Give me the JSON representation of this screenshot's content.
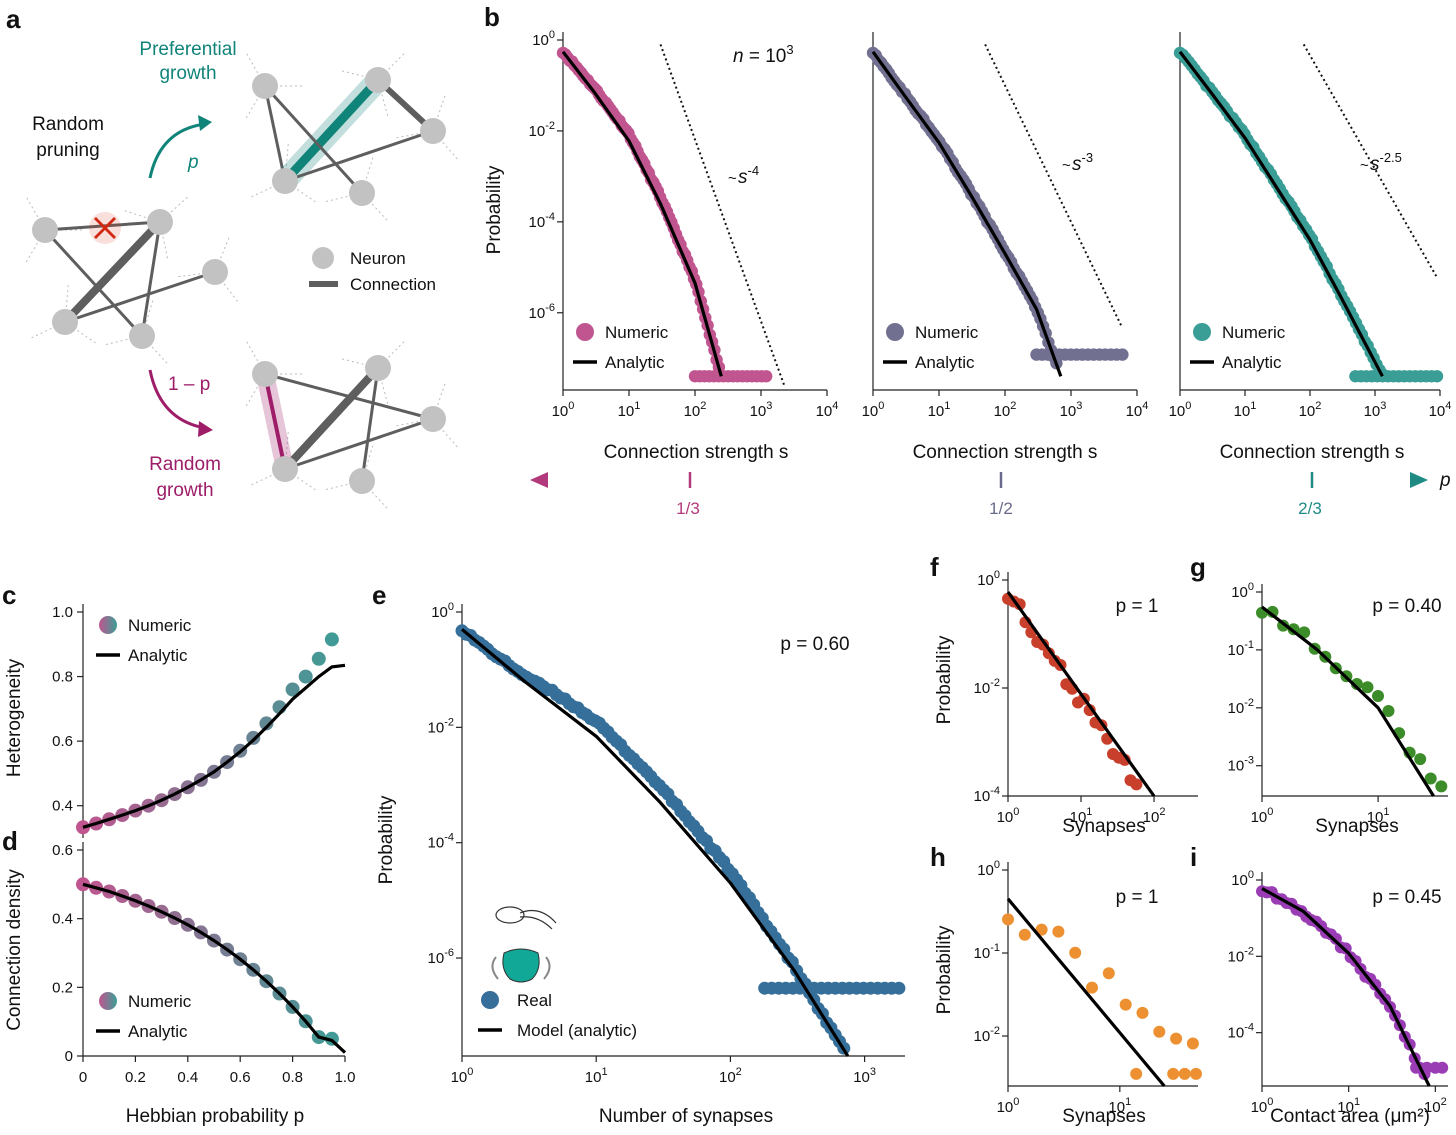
{
  "panel_letters": [
    "a",
    "b",
    "c",
    "d",
    "e",
    "f",
    "g",
    "h",
    "i"
  ],
  "panel_a": {
    "pruning": [
      "Random",
      "pruning"
    ],
    "pref": [
      "Preferential",
      "growth"
    ],
    "rand": [
      "Random",
      "growth"
    ],
    "p": "p",
    "one_minus_p": "1 – p",
    "legend_neuron": "Neuron",
    "legend_connection": "Connection",
    "colors": {
      "pref": "#11847a",
      "rand": "#9e1d68",
      "prune": "#d1260f",
      "node": "#c2c2c2",
      "edge": "#5e5e5e"
    }
  },
  "p_axis": {
    "label": "p",
    "ticks": [
      "1/3",
      "1/2",
      "2/3"
    ],
    "colors": [
      "#b23a7c",
      "#6a6a8c",
      "#1f8a84"
    ]
  },
  "chart_data": [
    {
      "id": "b1",
      "type": "scatter",
      "log_x": true,
      "log_y": true,
      "ylabel": "Probability",
      "xlabel": "Connection strength s",
      "xlim": [
        1,
        10000
      ],
      "ylim": [
        2e-08,
        1
      ],
      "xticks": [
        "10^0",
        "10^1",
        "10^2",
        "10^3",
        "10^4"
      ],
      "yticks": [
        "10^0",
        "10^-2",
        "10^-4",
        "10^-6"
      ],
      "annotation": "n = 10^3",
      "guide": "~s^-4",
      "guide_slope": -4,
      "color": "#c0558f",
      "legend": [
        "Numeric",
        "Analytic"
      ],
      "analytic": {
        "x": [
          1,
          3,
          10,
          30,
          100,
          250
        ],
        "y": [
          0.55,
          0.07,
          0.006,
          0.00025,
          4.5e-06,
          4e-08
        ]
      },
      "numeric_tail": {
        "floor_y": 4e-08,
        "floor_x": [
          100,
          1200
        ]
      }
    },
    {
      "id": "b2",
      "type": "scatter",
      "log_x": true,
      "log_y": true,
      "xlabel": "Connection strength s",
      "xlim": [
        1,
        10000
      ],
      "ylim": [
        2e-08,
        1
      ],
      "xticks": [
        "10^0",
        "10^1",
        "10^2",
        "10^3",
        "10^4"
      ],
      "guide": "~s^-3",
      "guide_slope": -3,
      "color": "#727090",
      "legend": [
        "Numeric",
        "Analytic"
      ],
      "analytic": {
        "x": [
          1,
          3,
          10,
          30,
          100,
          300,
          700
        ],
        "y": [
          0.55,
          0.06,
          0.0055,
          0.0004,
          2e-05,
          1.2e-06,
          4e-08
        ]
      },
      "numeric_tail": {
        "floor_y": 1.2e-07,
        "floor_x": [
          300,
          6000
        ]
      }
    },
    {
      "id": "b3",
      "type": "scatter",
      "log_x": true,
      "log_y": true,
      "xlabel": "Connection strength s",
      "xlim": [
        1,
        10000
      ],
      "ylim": [
        2e-08,
        1
      ],
      "xticks": [
        "10^0",
        "10^1",
        "10^2",
        "10^3",
        "10^4"
      ],
      "guide": "~s^-2.5",
      "guide_slope": -2.5,
      "color": "#3a9e96",
      "legend": [
        "Numeric",
        "Analytic"
      ],
      "analytic": {
        "x": [
          1,
          3,
          10,
          30,
          100,
          300,
          1300
        ],
        "y": [
          0.55,
          0.07,
          0.007,
          0.0006,
          4e-05,
          2.2e-06,
          4e-08
        ]
      },
      "numeric_tail": {
        "floor_y": 4e-08,
        "floor_x": [
          500,
          9000
        ]
      }
    },
    {
      "id": "c",
      "type": "scatter",
      "ylabel": "Heterogeneity",
      "xlim": [
        0,
        1
      ],
      "ylim": [
        0.3,
        1.0
      ],
      "yticks": [
        "0.4",
        "0.6",
        "0.8",
        "1.0"
      ],
      "legend": [
        "Numeric",
        "Analytic"
      ],
      "x": [
        0,
        0.05,
        0.1,
        0.15,
        0.2,
        0.25,
        0.3,
        0.35,
        0.4,
        0.45,
        0.5,
        0.55,
        0.6,
        0.65,
        0.7,
        0.75,
        0.8,
        0.85,
        0.9,
        0.95
      ],
      "numeric": [
        0.333,
        0.345,
        0.358,
        0.371,
        0.385,
        0.4,
        0.417,
        0.436,
        0.457,
        0.48,
        0.505,
        0.535,
        0.57,
        0.61,
        0.655,
        0.705,
        0.76,
        0.8,
        0.855,
        0.915
      ],
      "analytic": [
        0.333,
        0.345,
        0.358,
        0.371,
        0.385,
        0.4,
        0.417,
        0.436,
        0.457,
        0.48,
        0.505,
        0.535,
        0.567,
        0.603,
        0.643,
        0.685,
        0.73,
        0.765,
        0.8,
        0.83
      ]
    },
    {
      "id": "d",
      "type": "scatter",
      "ylabel": "Connection density",
      "xlabel": "Hebbian probability p",
      "xlim": [
        0,
        1
      ],
      "ylim": [
        0,
        0.6
      ],
      "xticks": [
        "0",
        "0.2",
        "0.4",
        "0.6",
        "0.8",
        "1.0"
      ],
      "yticks": [
        "0",
        "0.2",
        "0.4",
        "0.6"
      ],
      "legend": [
        "Numeric",
        "Analytic"
      ],
      "x": [
        0,
        0.05,
        0.1,
        0.15,
        0.2,
        0.25,
        0.3,
        0.35,
        0.4,
        0.45,
        0.5,
        0.55,
        0.6,
        0.65,
        0.7,
        0.75,
        0.8,
        0.85,
        0.9,
        0.95
      ],
      "numeric": [
        0.5,
        0.49,
        0.479,
        0.466,
        0.452,
        0.437,
        0.42,
        0.402,
        0.382,
        0.36,
        0.336,
        0.31,
        0.282,
        0.251,
        0.218,
        0.182,
        0.143,
        0.101,
        0.055,
        0.05
      ],
      "analytic_end": [
        1.0,
        0.01
      ]
    },
    {
      "id": "e",
      "type": "scatter",
      "log_x": true,
      "log_y": true,
      "ylabel": "Probability",
      "xlabel": "Number of synapses",
      "xlim": [
        1,
        2000
      ],
      "ylim": [
        2e-08,
        1
      ],
      "xticks": [
        "10^0",
        "10^1",
        "10^2",
        "10^3"
      ],
      "yticks": [
        "10^0",
        "10^-2",
        "10^-4",
        "10^-6"
      ],
      "annotation": "p = 0.60",
      "color": "#356f9a",
      "legend": [
        "Real",
        "Model (analytic)"
      ],
      "analytic": {
        "x": [
          1,
          3,
          10,
          30,
          100,
          300,
          750
        ],
        "y": [
          0.5,
          0.06,
          0.007,
          0.0005,
          2e-05,
          6e-07,
          2e-08
        ]
      },
      "numeric_tail": {
        "floor_y": 3e-07,
        "floor_x": [
          180,
          1800
        ]
      }
    },
    {
      "id": "f",
      "type": "scatter",
      "log_x": true,
      "log_y": true,
      "ylabel": "Probability",
      "xlabel": "Synapses",
      "xlim": [
        1,
        400
      ],
      "ylim": [
        0.0001,
        1
      ],
      "xticks": [
        "10^0",
        "10^1",
        "10^2"
      ],
      "yticks": [
        "10^0",
        "10^-2",
        "10^-4"
      ],
      "annotation": "p = 1",
      "color": "#c8402c",
      "analytic": {
        "x": [
          1,
          100
        ],
        "y": [
          0.6,
          0.0001
        ]
      }
    },
    {
      "id": "g",
      "type": "scatter",
      "log_x": true,
      "log_y": true,
      "xlabel": "Synapses",
      "xlim": [
        1,
        40
      ],
      "ylim": [
        0.0003,
        1
      ],
      "xticks": [
        "10^0",
        "10^1"
      ],
      "yticks": [
        "10^0",
        "10^-1",
        "10^-2",
        "10^-3"
      ],
      "annotation": "p = 0.40",
      "color": "#3d8c2a",
      "analytic": {
        "x": [
          1,
          3,
          10,
          30
        ],
        "y": [
          0.55,
          0.1,
          0.01,
          0.0003
        ]
      }
    },
    {
      "id": "h",
      "type": "scatter",
      "log_x": true,
      "log_y": true,
      "ylabel": "Probability",
      "xlabel": "Synapses",
      "xlim": [
        1,
        50
      ],
      "ylim": [
        0.0025,
        1
      ],
      "xticks": [
        "10^0",
        "10^1"
      ],
      "yticks": [
        "10^0",
        "10^-1",
        "10^-2"
      ],
      "annotation": "p = 1",
      "color": "#ec9032",
      "analytic": {
        "x": [
          1,
          25
        ],
        "y": [
          0.45,
          0.0025
        ]
      }
    },
    {
      "id": "i",
      "type": "scatter",
      "log_x": true,
      "log_y": true,
      "xlabel": "Contact area (μm²)",
      "xlim": [
        1,
        140
      ],
      "ylim": [
        4e-06,
        1
      ],
      "xticks": [
        "10^0",
        "10^1",
        "10^2"
      ],
      "yticks": [
        "10^0",
        "10^-2",
        "10^-4"
      ],
      "annotation": "p = 0.45",
      "color": "#9a3db5",
      "analytic": {
        "x": [
          1,
          3,
          10,
          30,
          85
        ],
        "y": [
          0.6,
          0.15,
          0.012,
          0.0005,
          4e-06
        ]
      }
    }
  ]
}
